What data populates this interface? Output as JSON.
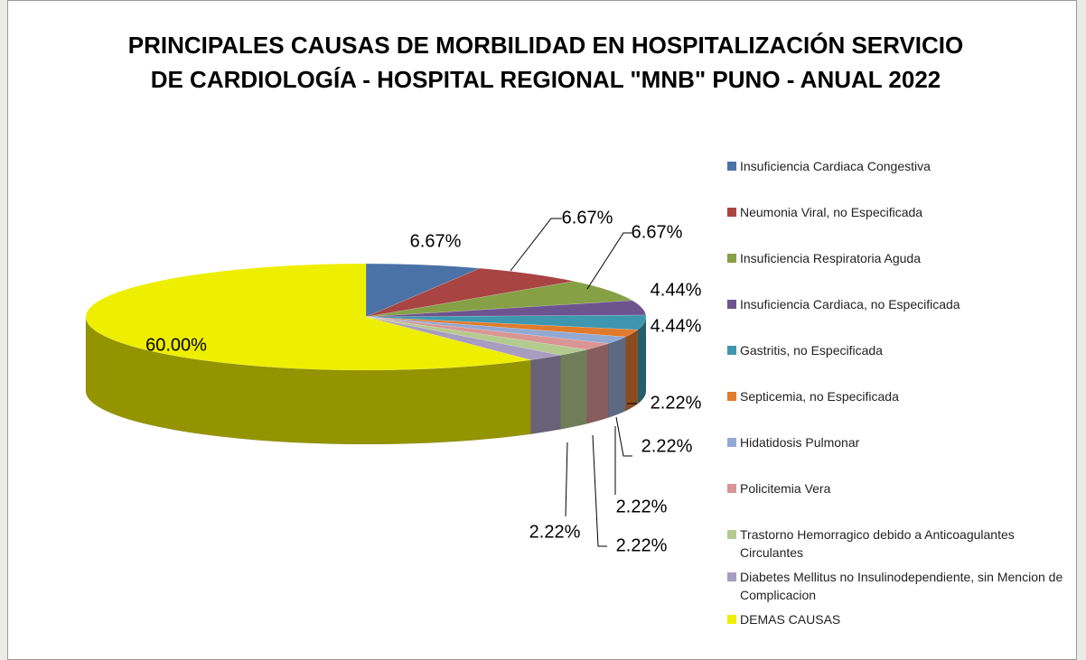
{
  "chart_data": {
    "type": "pie3d",
    "title": "PRINCIPALES CAUSAS DE MORBILIDAD EN HOSPITALIZACIÓN SERVICIO DE CARDIOLOGÍA - HOSPITAL REGIONAL \"MNB\" PUNO - ANUAL 2022",
    "categories": [
      "Insuficiencia Cardiaca Congestiva",
      "Neumonia Viral, no Especificada",
      "Insuficiencia Respiratoria Aguda",
      "Insuficiencia Cardiaca, no Especificada",
      "Gastritis, no Especificada",
      "Septicemia, no Especificada",
      "Hidatidosis Pulmonar",
      "Policitemia Vera",
      "Trastorno Hemorragico debido a Anticoagulantes Circulantes",
      "Diabetes Mellitus no Insulinodependiente, sin Mencion de Complicacion",
      "DEMAS CAUSAS"
    ],
    "values": [
      6.67,
      6.67,
      6.67,
      4.44,
      4.44,
      2.22,
      2.22,
      2.22,
      2.22,
      2.22,
      60.0
    ],
    "value_labels": [
      "6.67%",
      "6.67%",
      "6.67%",
      "4.44%",
      "4.44%",
      "2.22%",
      "2.22%",
      "2.22%",
      "2.22%",
      "2.22%",
      "60.00%"
    ],
    "colors": [
      "#4a72a6",
      "#a94442",
      "#86a046",
      "#6e548f",
      "#3e97ae",
      "#e07b2e",
      "#92a9d4",
      "#d99594",
      "#b5ca8f",
      "#a89cc0",
      "#eeee00"
    ],
    "legend": "right"
  }
}
